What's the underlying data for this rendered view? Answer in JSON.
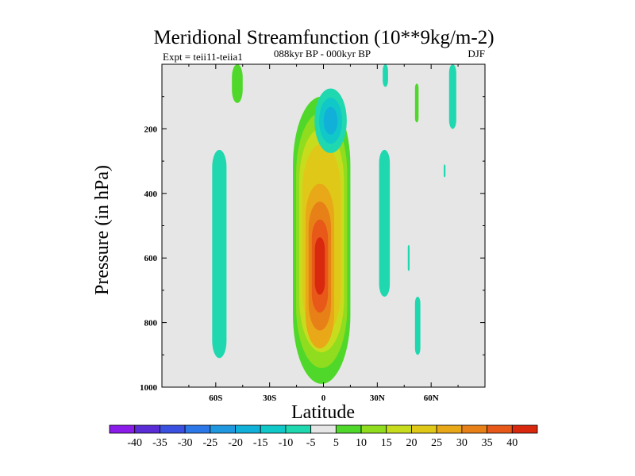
{
  "chart_data": {
    "type": "heatmap",
    "title": "Meridional Streamfunction (10**9kg/m-2)",
    "subtitle": "088kyr BP - 000kyr BP",
    "left_label": "Expt = teii11-teiia1",
    "season": "DJF",
    "xlabel": "Latitude",
    "ylabel": "Pressure (in hPa)",
    "xlim": [
      -90,
      90
    ],
    "ylim": [
      1000,
      0
    ],
    "y_reversed": true,
    "xticks": [
      {
        "value": -60,
        "label": "60S"
      },
      {
        "value": -30,
        "label": "30S"
      },
      {
        "value": 0,
        "label": "0"
      },
      {
        "value": 30,
        "label": "30N"
      },
      {
        "value": 60,
        "label": "60N"
      }
    ],
    "yticks": [
      {
        "value": 200,
        "label": "200"
      },
      {
        "value": 400,
        "label": "400"
      },
      {
        "value": 600,
        "label": "600"
      },
      {
        "value": 800,
        "label": "800"
      },
      {
        "value": 1000,
        "label": "1000"
      }
    ],
    "background_color": "#e6e6e6",
    "contour_levels": [
      -40,
      -35,
      -30,
      -25,
      -20,
      -15,
      -10,
      -5,
      5,
      10,
      15,
      20,
      25,
      30,
      35,
      40
    ],
    "colorbar_labels": [
      "-40",
      "-35",
      "-30",
      "-25",
      "-20",
      "-15",
      "-10",
      "-5",
      "5",
      "10",
      "15",
      "20",
      "25",
      "30",
      "35",
      "40"
    ],
    "colorbar_colors": [
      "#8a1be8",
      "#5a2cd6",
      "#3a50e0",
      "#2c78e8",
      "#1f98e0",
      "#10b0d8",
      "#10c8c8",
      "#20d8b0",
      "#e6e6e6",
      "#4fd82a",
      "#90dc1e",
      "#c8dc1e",
      "#e0c818",
      "#e8a818",
      "#e88018",
      "#e85818",
      "#d8280e"
    ],
    "features": [
      {
        "name": "main-positive-cell",
        "sign": "positive",
        "lat_range": [
          -17,
          15
        ],
        "p_range": [
          100,
          990
        ],
        "peak_value": 40,
        "core_lat": -2,
        "core_p": [
          370,
          880
        ]
      },
      {
        "name": "upper-negative-cell",
        "sign": "negative",
        "lat_range": [
          -5,
          13
        ],
        "p_range": [
          75,
          275
        ],
        "peak_value": -15
      },
      {
        "name": "sh-midlat-negative-band",
        "sign": "negative",
        "lat_range": [
          -62,
          -54
        ],
        "p_range": [
          265,
          910
        ],
        "peak_value": -5
      },
      {
        "name": "nh-negative-band",
        "sign": "negative",
        "lat_range": [
          31,
          37
        ],
        "p_range": [
          265,
          720
        ],
        "peak_value": -5
      },
      {
        "name": "nh-negative-band-upper",
        "sign": "negative",
        "lat_range": [
          33,
          36
        ],
        "p_range": [
          0,
          70
        ],
        "peak_value": -5
      },
      {
        "name": "nh-negative-band-lower",
        "sign": "negative",
        "lat_range": [
          51,
          54
        ],
        "p_range": [
          720,
          900
        ],
        "peak_value": -5
      },
      {
        "name": "nh-negative-band-top",
        "sign": "negative",
        "lat_range": [
          70,
          74
        ],
        "p_range": [
          0,
          200
        ],
        "peak_value": -5
      },
      {
        "name": "nh-negative-speck",
        "sign": "negative",
        "lat_range": [
          67,
          68
        ],
        "p_range": [
          310,
          350
        ],
        "peak_value": -5
      },
      {
        "name": "nh-negative-speck-2",
        "sign": "negative",
        "lat_range": [
          47,
          48
        ],
        "p_range": [
          560,
          640
        ],
        "peak_value": -5
      },
      {
        "name": "sh-positive-top",
        "sign": "positive",
        "lat_range": [
          -51,
          -45
        ],
        "p_range": [
          0,
          120
        ],
        "peak_value": 5
      },
      {
        "name": "nh-positive-thin",
        "sign": "positive",
        "lat_range": [
          51,
          53
        ],
        "p_range": [
          60,
          180
        ],
        "peak_value": 5
      }
    ]
  }
}
